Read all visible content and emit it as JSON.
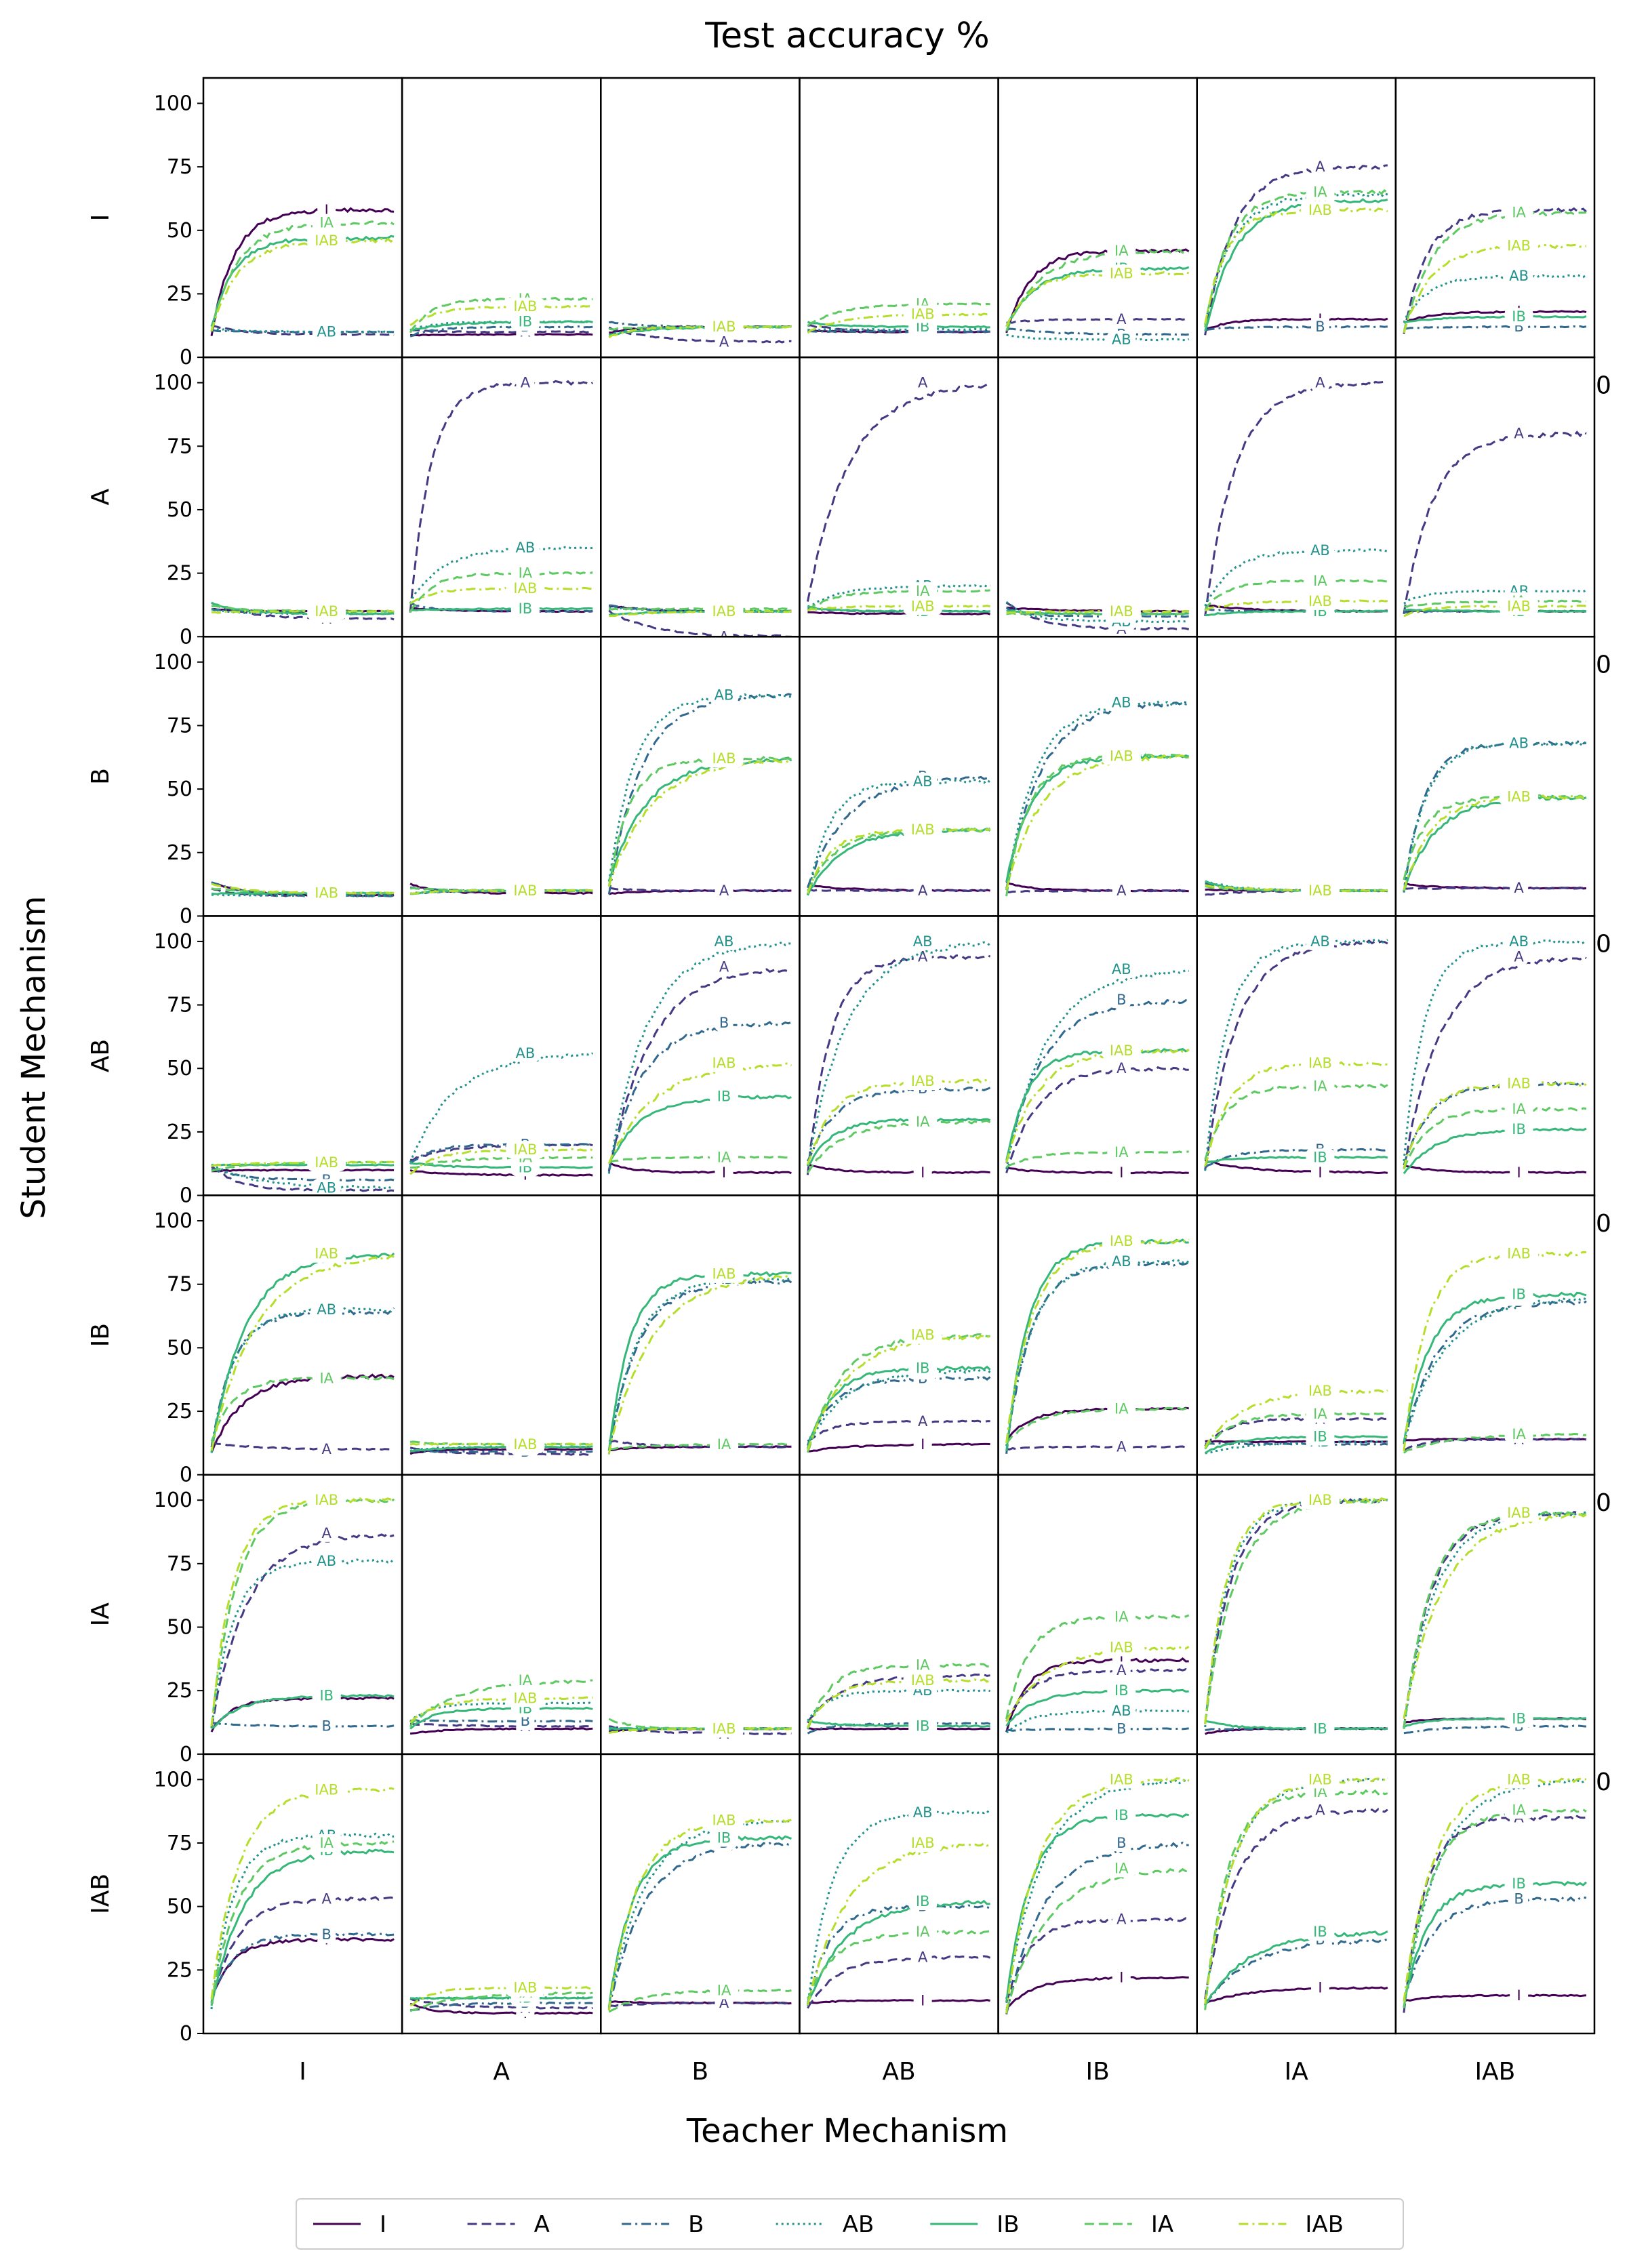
{
  "chart_data": {
    "type": "line",
    "title": "Test accuracy %",
    "xlabel": "Teacher Mechanism",
    "ylabel": "Student Mechanism",
    "teachers": [
      "I",
      "A",
      "B",
      "AB",
      "IB",
      "IA",
      "IAB"
    ],
    "students": [
      "I",
      "A",
      "B",
      "AB",
      "IB",
      "IA",
      "IAB"
    ],
    "ylim": [
      0,
      110
    ],
    "yticks": [
      "0",
      "25",
      "50",
      "75",
      "100"
    ],
    "x": "training progress (unlabeled axis)",
    "stray_tick_label": "0",
    "grid": false,
    "legend_position": "bottom",
    "series": [
      {
        "name": "I",
        "color": "#440154",
        "dash": "solid"
      },
      {
        "name": "A",
        "color": "#443983",
        "dash": "dashed"
      },
      {
        "name": "B",
        "color": "#31688e",
        "dash": "dashdot"
      },
      {
        "name": "AB",
        "color": "#21918c",
        "dash": "dotted"
      },
      {
        "name": "IB",
        "color": "#35b779",
        "dash": "solid"
      },
      {
        "name": "IA",
        "color": "#5ec962",
        "dash": "dashed"
      },
      {
        "name": "IAB",
        "color": "#b5de2b",
        "dash": "dashdot"
      }
    ],
    "final_values": {
      "I": {
        "I": {
          "I": 58,
          "A": 9,
          "B": 10,
          "AB": 10,
          "IB": 47,
          "IA": 53,
          "IAB": 46
        },
        "A": {
          "I": 9,
          "A": 10,
          "B": 12,
          "AB": 14,
          "IB": 14,
          "IA": 23,
          "IAB": 20
        },
        "B": {
          "I": 12,
          "A": 6,
          "B": 12,
          "AB": 12,
          "IB": 12,
          "IA": 12,
          "IAB": 12
        },
        "AB": {
          "I": 10,
          "A": 10,
          "B": 10,
          "AB": 11,
          "IB": 12,
          "IA": 21,
          "IAB": 17
        },
        "IB": {
          "I": 42,
          "A": 15,
          "B": 9,
          "AB": 7,
          "IB": 35,
          "IA": 42,
          "IAB": 33
        },
        "IA": {
          "I": 15,
          "A": 75,
          "B": 12,
          "AB": 64,
          "IB": 62,
          "IA": 65,
          "IAB": 58
        },
        "IAB": {
          "I": 18,
          "A": 58,
          "B": 12,
          "AB": 32,
          "IB": 16,
          "IA": 57,
          "IAB": 44
        }
      },
      "A": {
        "I": {
          "I": 10,
          "A": 7,
          "B": 10,
          "AB": 9,
          "IB": 9,
          "IA": 10,
          "IAB": 10
        },
        "A": {
          "I": 10,
          "A": 100,
          "B": 10,
          "AB": 35,
          "IB": 11,
          "IA": 25,
          "IAB": 19
        },
        "B": {
          "I": 10,
          "A": 0,
          "B": 10,
          "AB": 10,
          "IB": 10,
          "IA": 11,
          "IAB": 10
        },
        "AB": {
          "I": 9,
          "A": 100,
          "B": 10,
          "AB": 20,
          "IB": 10,
          "IA": 18,
          "IAB": 12
        },
        "IB": {
          "I": 10,
          "A": 3,
          "B": 8,
          "AB": 6,
          "IB": 9,
          "IA": 9,
          "IAB": 10
        },
        "IA": {
          "I": 10,
          "A": 100,
          "B": 10,
          "AB": 34,
          "IB": 10,
          "IA": 22,
          "IAB": 14
        },
        "IAB": {
          "I": 10,
          "A": 80,
          "B": 10,
          "AB": 18,
          "IB": 10,
          "IA": 14,
          "IAB": 12
        }
      },
      "B": {
        "I": {
          "I": 8,
          "A": 8,
          "B": 8,
          "AB": 8,
          "IB": 9,
          "IA": 9,
          "IAB": 9
        },
        "A": {
          "I": 9,
          "A": 10,
          "B": 10,
          "AB": 10,
          "IB": 10,
          "IA": 10,
          "IAB": 10
        },
        "B": {
          "I": 10,
          "A": 10,
          "B": 87,
          "AB": 87,
          "IB": 62,
          "IA": 62,
          "IAB": 62
        },
        "AB": {
          "I": 10,
          "A": 10,
          "B": 55,
          "AB": 53,
          "IB": 34,
          "IA": 34,
          "IAB": 34
        },
        "IB": {
          "I": 10,
          "A": 10,
          "B": 84,
          "AB": 84,
          "IB": 63,
          "IA": 63,
          "IAB": 63
        },
        "IA": {
          "I": 10,
          "A": 10,
          "B": 10,
          "AB": 10,
          "IB": 10,
          "IA": 10,
          "IAB": 10
        },
        "IAB": {
          "I": 11,
          "A": 11,
          "B": 68,
          "AB": 68,
          "IB": 47,
          "IA": 47,
          "IAB": 47
        }
      },
      "AB": {
        "I": {
          "I": 10,
          "A": 2,
          "B": 6,
          "AB": 3,
          "IB": 12,
          "IA": 13,
          "IAB": 13
        },
        "A": {
          "I": 8,
          "A": 20,
          "B": 20,
          "AB": 56,
          "IB": 11,
          "IA": 15,
          "IAB": 18
        },
        "B": {
          "I": 9,
          "A": 90,
          "B": 68,
          "AB": 100,
          "IB": 39,
          "IA": 15,
          "IAB": 52
        },
        "AB": {
          "I": 9,
          "A": 94,
          "B": 42,
          "AB": 100,
          "IB": 30,
          "IA": 29,
          "IAB": 45
        },
        "IB": {
          "I": 9,
          "A": 50,
          "B": 77,
          "AB": 89,
          "IB": 57,
          "IA": 17,
          "IAB": 57
        },
        "IA": {
          "I": 9,
          "A": 100,
          "B": 18,
          "AB": 100,
          "IB": 15,
          "IA": 43,
          "IAB": 52
        },
        "IAB": {
          "I": 9,
          "A": 94,
          "B": 44,
          "AB": 100,
          "IB": 26,
          "IA": 34,
          "IAB": 44
        }
      },
      "IB": {
        "I": {
          "I": 39,
          "A": 10,
          "B": 64,
          "AB": 65,
          "IB": 87,
          "IA": 38,
          "IAB": 87
        },
        "A": {
          "I": 10,
          "A": 8,
          "B": 9,
          "AB": 11,
          "IB": 11,
          "IA": 12,
          "IAB": 12
        },
        "B": {
          "I": 11,
          "A": 11,
          "B": 76,
          "AB": 77,
          "IB": 79,
          "IA": 12,
          "IAB": 79
        },
        "AB": {
          "I": 12,
          "A": 21,
          "B": 38,
          "AB": 41,
          "IB": 42,
          "IA": 55,
          "IAB": 55
        },
        "IB": {
          "I": 26,
          "A": 11,
          "B": 83,
          "AB": 84,
          "IB": 92,
          "IA": 26,
          "IAB": 92
        },
        "IA": {
          "I": 13,
          "A": 22,
          "B": 12,
          "AB": 13,
          "IB": 15,
          "IA": 24,
          "IAB": 33
        },
        "IAB": {
          "I": 14,
          "A": 14,
          "B": 68,
          "AB": 70,
          "IB": 71,
          "IA": 16,
          "IAB": 87
        }
      },
      "IA": {
        "I": {
          "I": 22,
          "A": 87,
          "B": 11,
          "AB": 76,
          "IB": 23,
          "IA": 100,
          "IAB": 100
        },
        "A": {
          "I": 10,
          "A": 11,
          "B": 13,
          "AB": 20,
          "IB": 18,
          "IA": 29,
          "IAB": 22
        },
        "B": {
          "I": 10,
          "A": 8,
          "B": 10,
          "AB": 10,
          "IB": 10,
          "IA": 10,
          "IAB": 10
        },
        "AB": {
          "I": 10,
          "A": 31,
          "B": 12,
          "AB": 25,
          "IB": 11,
          "IA": 35,
          "IAB": 29
        },
        "IB": {
          "I": 37,
          "A": 33,
          "B": 10,
          "AB": 17,
          "IB": 25,
          "IA": 54,
          "IAB": 42
        },
        "IA": {
          "I": 10,
          "A": 100,
          "B": 10,
          "AB": 100,
          "IB": 10,
          "IA": 100,
          "IAB": 100
        },
        "IAB": {
          "I": 14,
          "A": 95,
          "B": 11,
          "AB": 95,
          "IB": 14,
          "IA": 95,
          "IAB": 95
        }
      },
      "IAB": {
        "I": {
          "I": 37,
          "A": 53,
          "B": 39,
          "AB": 78,
          "IB": 72,
          "IA": 75,
          "IAB": 96
        },
        "A": {
          "I": 8,
          "A": 10,
          "B": 12,
          "AB": 14,
          "IB": 14,
          "IA": 16,
          "IAB": 18
        },
        "B": {
          "I": 12,
          "A": 12,
          "B": 75,
          "AB": 84,
          "IB": 77,
          "IA": 17,
          "IAB": 84
        },
        "AB": {
          "I": 13,
          "A": 30,
          "B": 50,
          "AB": 87,
          "IB": 52,
          "IA": 40,
          "IAB": 75
        },
        "IB": {
          "I": 22,
          "A": 45,
          "B": 75,
          "AB": 100,
          "IB": 86,
          "IA": 65,
          "IAB": 100
        },
        "IA": {
          "I": 18,
          "A": 88,
          "B": 37,
          "AB": 100,
          "IB": 40,
          "IA": 95,
          "IAB": 100
        },
        "IAB": {
          "I": 15,
          "A": 85,
          "B": 53,
          "AB": 100,
          "IB": 59,
          "IA": 88,
          "IAB": 100
        }
      }
    }
  }
}
